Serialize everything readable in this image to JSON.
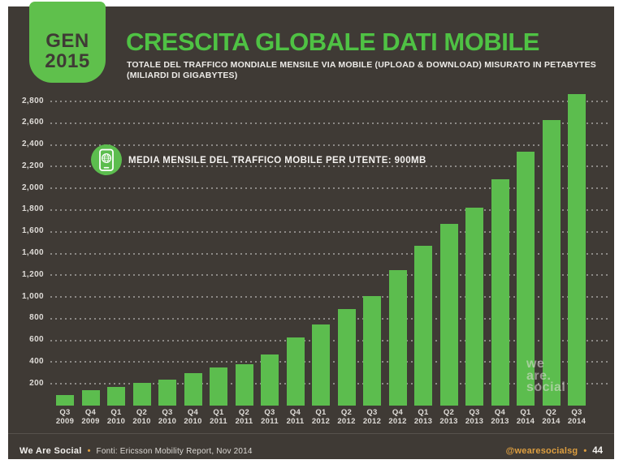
{
  "slide": {
    "badge": {
      "line1": "GEN",
      "line2": "2015"
    },
    "title": "CRESCITA GLOBALE DATI MOBILE",
    "subtitle_line1": "TOTALE DEL TRAFFICO MONDIALE MENSILE VIA MOBILE (UPLOAD & DOWNLOAD) MISURATO IN PETABYTES",
    "subtitle_line2": "(MILIARDI DI GIGABYTES)",
    "annotation_text": "MEDIA MENSILE DEL TRAFFICO MOBILE PER UTENTE: 900MB",
    "watermark": [
      "we",
      "are.",
      "social"
    ],
    "footer": {
      "brand": "We Are Social",
      "separator": "•",
      "source": "Fonti: Ericsson Mobility Report, Nov 2014",
      "handle": "@wearesocialsg",
      "page_number": "44"
    },
    "colors": {
      "background": "#3F3A35",
      "green": "#5CBD4E",
      "title_green": "#4FC244",
      "orange": "#DD9E3F",
      "text_light": "#DFDCD8"
    }
  },
  "chart_data": {
    "type": "bar",
    "title": "CRESCITA GLOBALE DATI MOBILE",
    "unit": "petabytes per month",
    "categories": [
      "Q3 2009",
      "Q4 2009",
      "Q1 2010",
      "Q2 2010",
      "Q3 2010",
      "Q4 2010",
      "Q1 2011",
      "Q2 2011",
      "Q3 2011",
      "Q4 2011",
      "Q1 2012",
      "Q2 2012",
      "Q3 2012",
      "Q4 2012",
      "Q1 2013",
      "Q2 2013",
      "Q3 2013",
      "Q4 2013",
      "Q1 2014",
      "Q2 2014",
      "Q3 2014"
    ],
    "values": [
      100,
      140,
      170,
      210,
      240,
      300,
      350,
      380,
      470,
      630,
      750,
      890,
      1010,
      1250,
      1470,
      1670,
      1820,
      2080,
      2340,
      2630,
      2870
    ],
    "ylim": [
      0,
      2800
    ],
    "ytick_interval": 200,
    "yticks": [
      "200",
      "400",
      "600",
      "800",
      "1,000",
      "1,200",
      "1,400",
      "1,600",
      "1,800",
      "2,000",
      "2,200",
      "2,400",
      "2,600",
      "2,800"
    ],
    "grid": "horizontal-dotted",
    "legend": "none",
    "bar_color": "#5CBD4E",
    "annotation": "MEDIA MENSILE DEL TRAFFICO MOBILE PER UTENTE: 900MB"
  }
}
